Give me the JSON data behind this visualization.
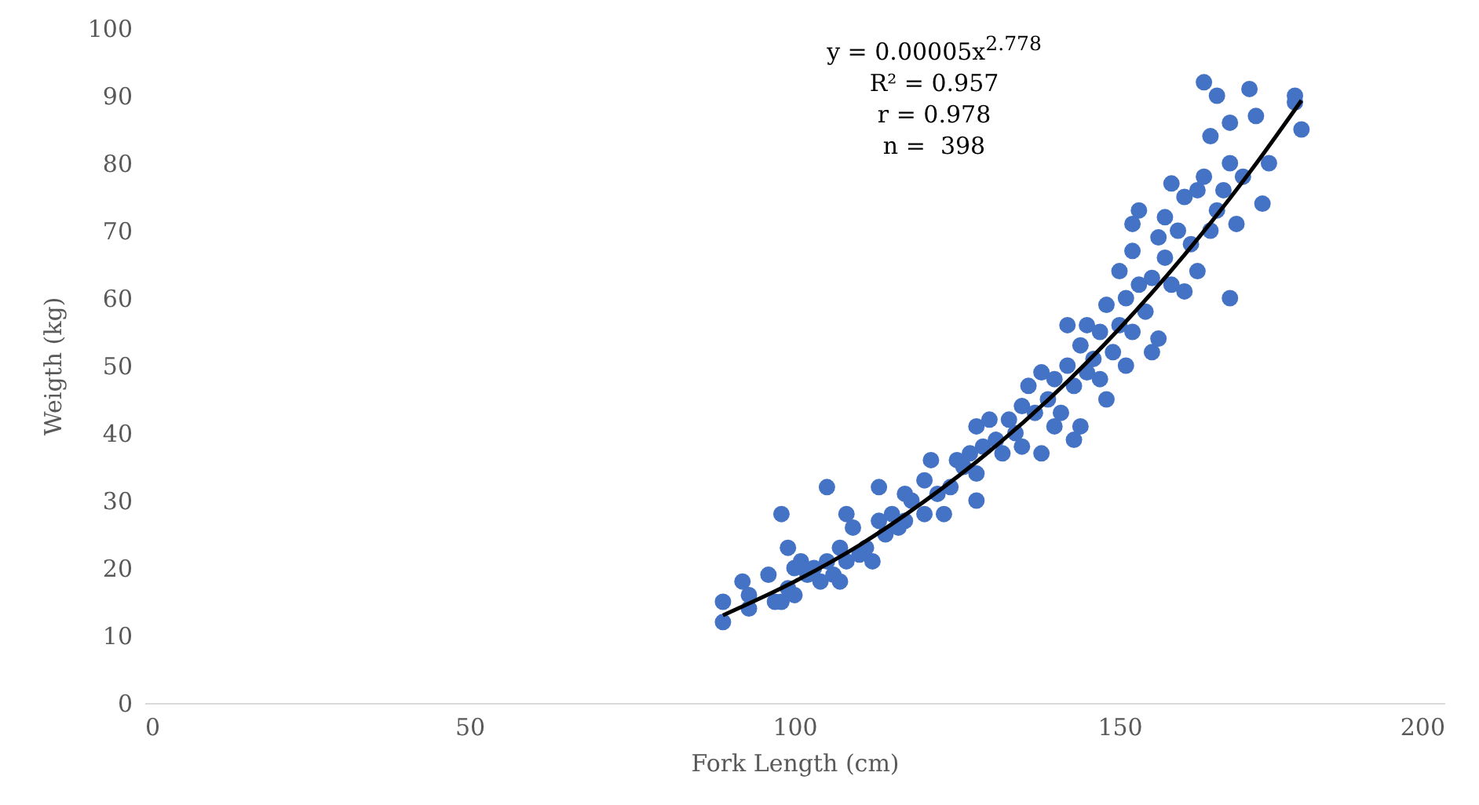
{
  "chart_data": {
    "type": "scatter",
    "xlabel": "Fork Length (cm)",
    "ylabel": "Weigth (kg)",
    "xlim": [
      0,
      200
    ],
    "xticks": [
      0,
      50,
      100,
      150,
      200
    ],
    "ylim": [
      0,
      100
    ],
    "yticks": [
      0,
      10,
      20,
      30,
      40,
      50,
      60,
      70,
      80,
      90,
      100
    ],
    "grid": false,
    "annotations": [
      "y = 0.00005x$^{2.778}$",
      "R² = 0.957",
      "r = 0.978",
      "n =  398"
    ],
    "series": [
      {
        "marker": "circle",
        "color": "#4472c4",
        "x": [
          89,
          89,
          92,
          93,
          93,
          96,
          97,
          98,
          98,
          99,
          99,
          100,
          100,
          101,
          102,
          103,
          104,
          105,
          105,
          106,
          107,
          107,
          108,
          108,
          109,
          110,
          111,
          112,
          113,
          113,
          114,
          115,
          116,
          117,
          117,
          118,
          120,
          120,
          121,
          122,
          123,
          124,
          125,
          126,
          127,
          128,
          128,
          128,
          129,
          130,
          131,
          132,
          133,
          134,
          135,
          135,
          136,
          137,
          138,
          138,
          139,
          140,
          140,
          141,
          142,
          142,
          143,
          143,
          144,
          144,
          145,
          145,
          146,
          147,
          147,
          148,
          148,
          149,
          150,
          150,
          151,
          151,
          152,
          152,
          152,
          153,
          153,
          154,
          155,
          155,
          156,
          156,
          157,
          157,
          158,
          158,
          159,
          160,
          160,
          161,
          162,
          162,
          163,
          163,
          164,
          164,
          165,
          165,
          166,
          167,
          167,
          167,
          168,
          169,
          170,
          171,
          172,
          173,
          177,
          177,
          178
        ],
        "values": [
          12,
          15,
          18,
          14,
          16,
          19,
          15,
          28,
          15,
          23,
          17,
          16,
          20,
          21,
          19,
          20,
          18,
          32,
          21,
          19,
          18,
          23,
          28,
          21,
          26,
          22,
          23,
          21,
          32,
          27,
          25,
          28,
          26,
          31,
          27,
          30,
          33,
          28,
          36,
          31,
          28,
          32,
          36,
          35,
          37,
          30,
          34,
          41,
          38,
          42,
          39,
          37,
          42,
          40,
          44,
          38,
          47,
          43,
          49,
          37,
          45,
          41,
          48,
          43,
          56,
          50,
          39,
          47,
          41,
          53,
          56,
          49,
          51,
          55,
          48,
          45,
          59,
          52,
          64,
          56,
          60,
          50,
          67,
          55,
          71,
          73,
          62,
          58,
          63,
          52,
          69,
          54,
          66,
          72,
          77,
          62,
          70,
          61,
          75,
          68,
          64,
          76,
          92,
          78,
          84,
          70,
          90,
          73,
          76,
          86,
          80,
          60,
          71,
          78,
          91,
          87,
          74,
          80,
          90,
          89,
          85
        ]
      },
      {
        "type": "line",
        "marker": "none",
        "color": "#000000",
        "x": [
          89,
          100,
          110,
          120,
          130,
          140,
          150,
          160,
          170,
          178
        ],
        "values": [
          13.0,
          18.0,
          23.4,
          29.9,
          37.3,
          45.8,
          55.5,
          66.4,
          78.6,
          89.3
        ]
      }
    ]
  }
}
